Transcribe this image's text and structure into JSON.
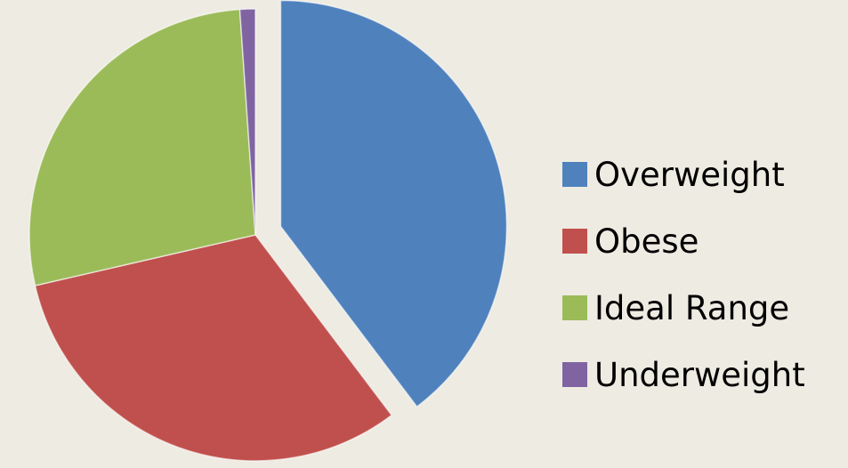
{
  "chart_data": {
    "type": "pie",
    "title": "",
    "categories": [
      "Overweight",
      "Obese",
      "Ideal Range",
      "Underweight"
    ],
    "values": [
      39.7,
      31.7,
      27.5,
      1.1
    ],
    "unit": "%",
    "colors": [
      "#4f81bd",
      "#c0504d",
      "#9bbb59",
      "#8064a2"
    ],
    "exploded": [
      "Overweight"
    ],
    "start_angle_deg": 0,
    "direction": "clockwise",
    "legend": {
      "position": "right",
      "entries": [
        "Overweight",
        "Obese",
        "Ideal Range",
        "Underweight"
      ]
    },
    "data_labels": false
  }
}
